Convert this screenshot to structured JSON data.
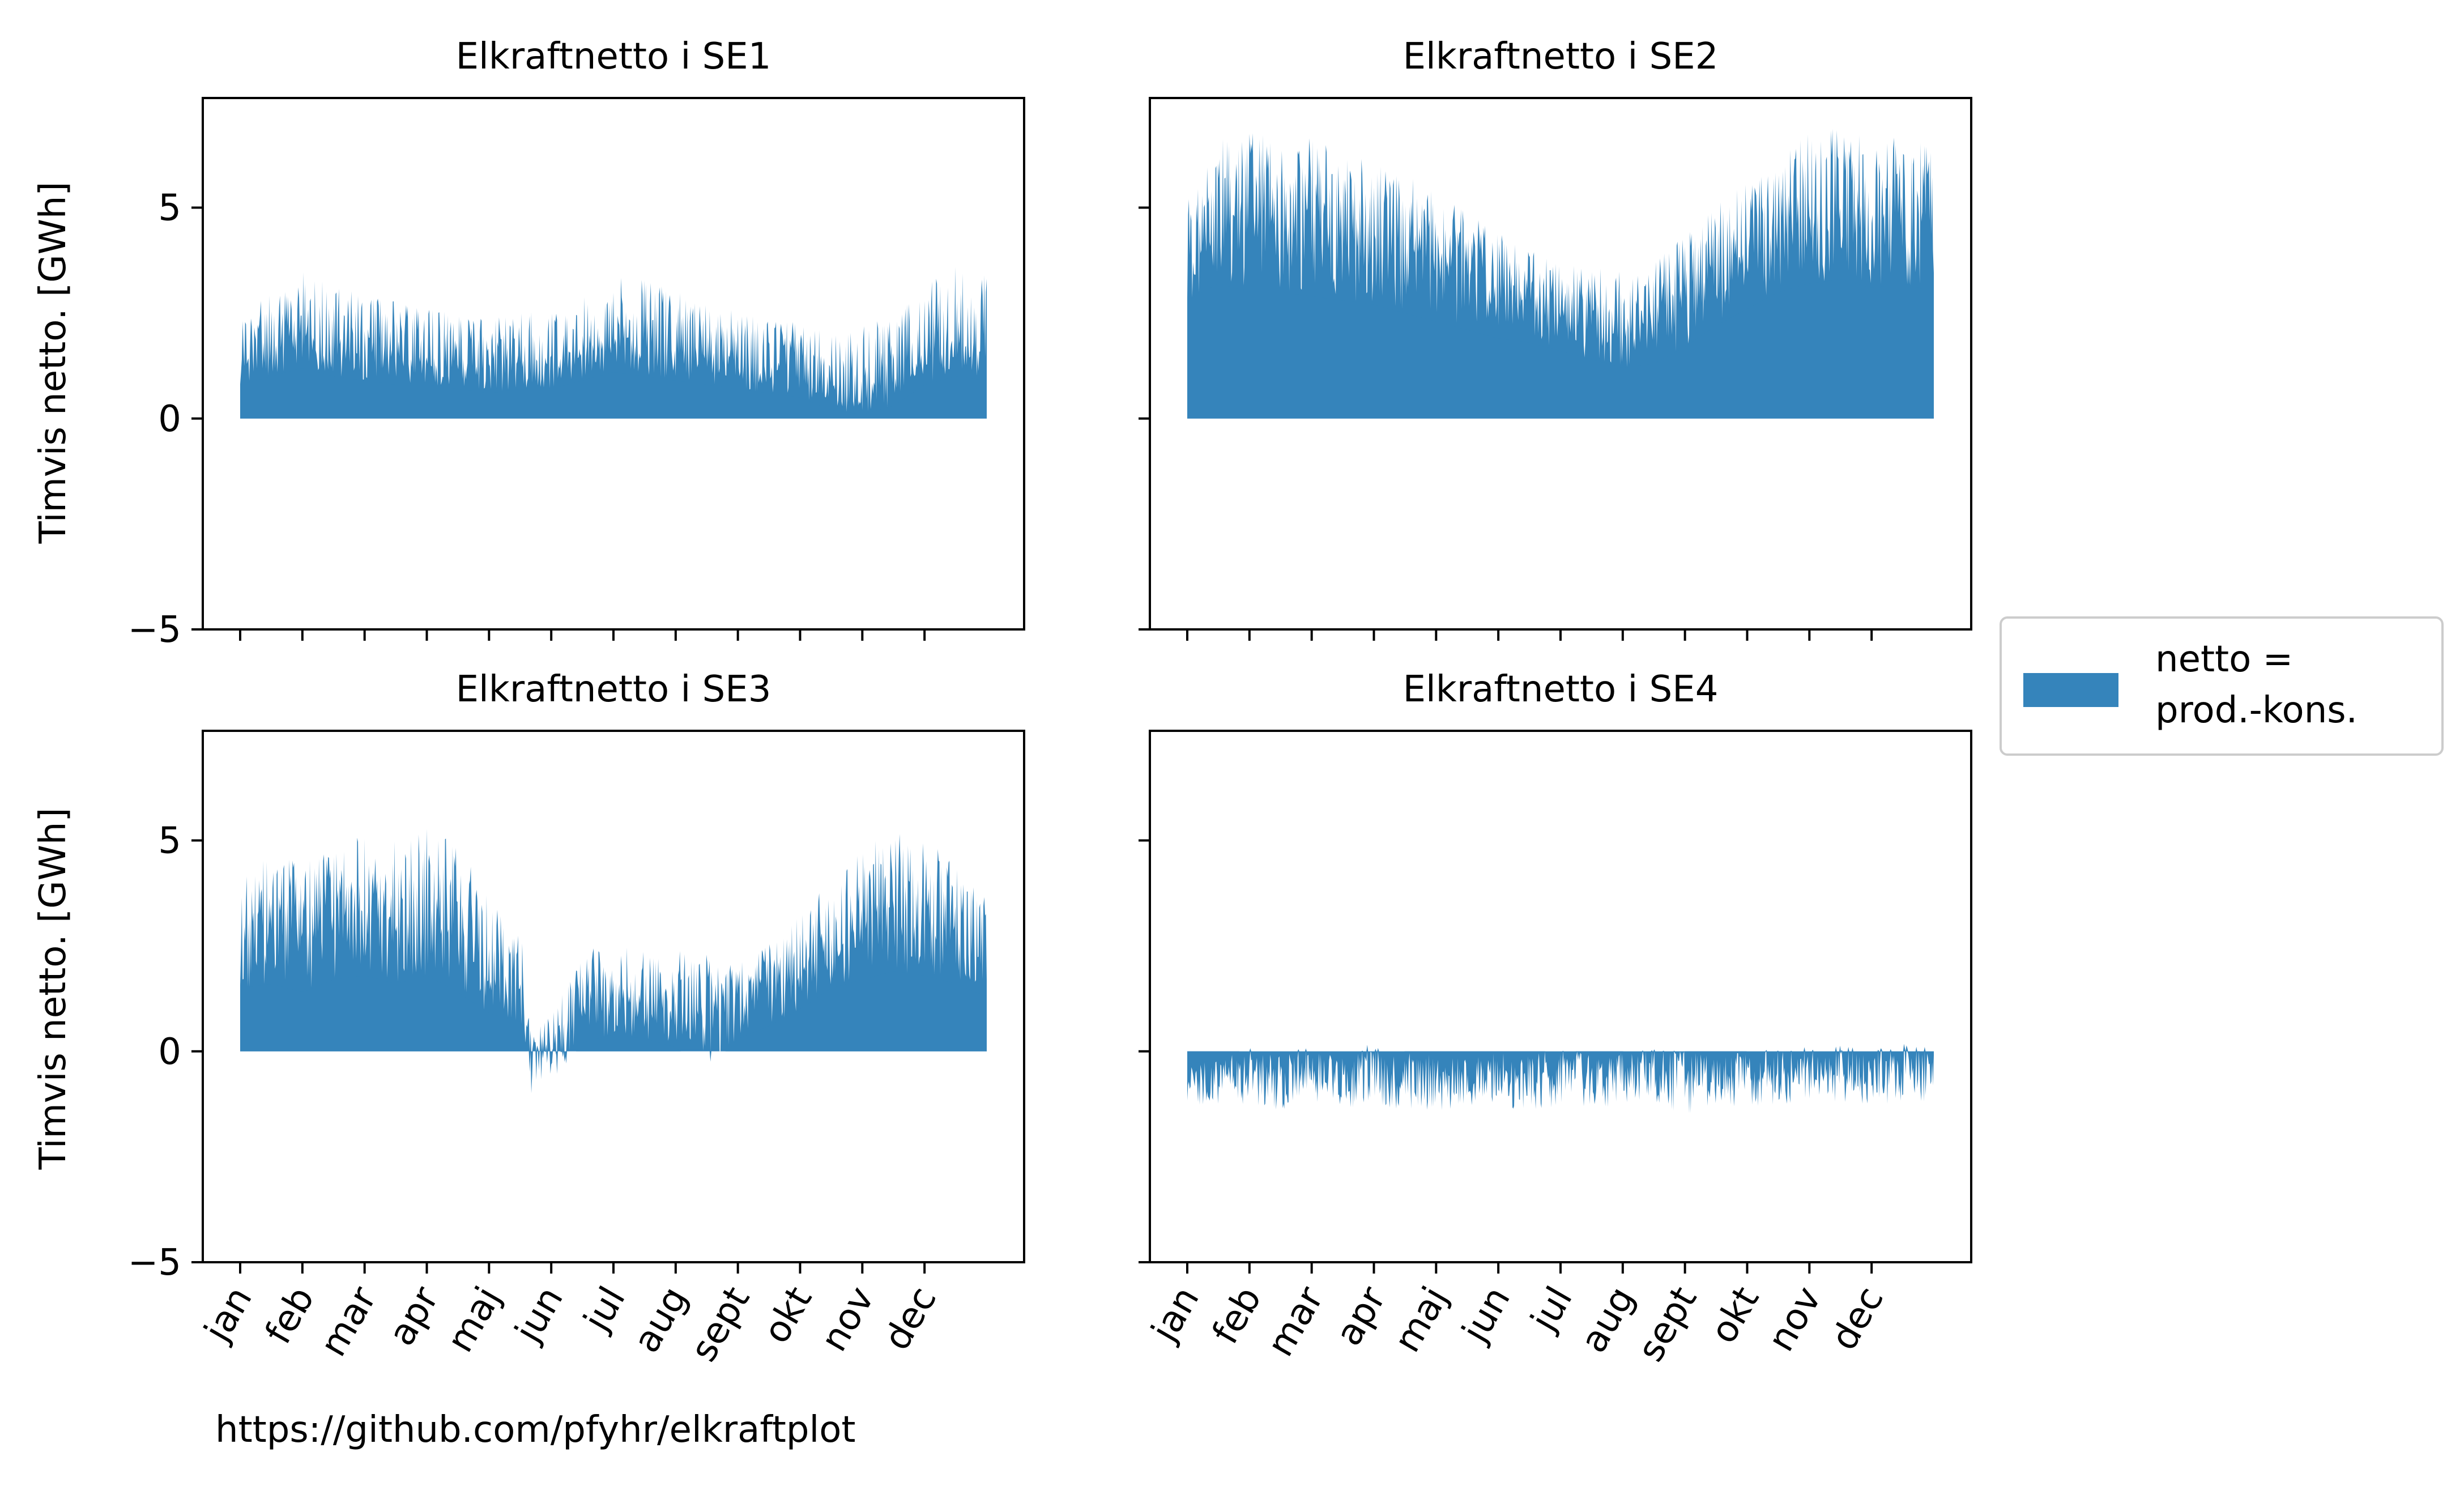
{
  "figure": {
    "credit": "https://github.com/pfyhr/elkraftplot",
    "ylabel": "Timvis netto. [GWh]",
    "fill_color": "#3584bb",
    "legend": {
      "label_line1": "netto =",
      "label_line2": "prod.-kons.",
      "placement": "center-right outside"
    }
  },
  "chart_data": [
    {
      "type": "area",
      "title": "Elkraftnetto i SE1",
      "ylabel": "Timvis netto. [GWh]",
      "ylim": [
        -5,
        7.6
      ],
      "yticks": [
        "−5",
        "0",
        "5"
      ],
      "ytick_values": [
        -5,
        0,
        5
      ],
      "xticks": [
        "jan",
        "feb",
        "mar",
        "apr",
        "maj",
        "jun",
        "jul",
        "aug",
        "sept",
        "okt",
        "nov",
        "dec"
      ],
      "xtick_labels_shown": false,
      "x_unit": "month",
      "x_range": [
        0,
        12
      ],
      "series": [
        {
          "name": "netto = prod.-kons.",
          "envelope_x": [
            0.0,
            0.5,
            1.0,
            1.5,
            2.0,
            2.5,
            3.0,
            3.5,
            4.0,
            4.5,
            5.0,
            5.5,
            6.0,
            6.5,
            7.0,
            7.5,
            8.0,
            8.5,
            9.0,
            9.5,
            10.0,
            10.5,
            11.0,
            11.5,
            12.0
          ],
          "upper": [
            2.4,
            3.0,
            3.5,
            3.2,
            2.9,
            2.8,
            2.6,
            2.5,
            2.4,
            2.5,
            2.6,
            3.0,
            3.4,
            3.3,
            3.0,
            2.8,
            2.6,
            2.4,
            2.3,
            2.0,
            2.2,
            2.5,
            3.2,
            3.6,
            3.5
          ],
          "base": [
            1.6,
            1.9,
            2.1,
            1.9,
            1.7,
            1.6,
            1.5,
            1.4,
            1.3,
            1.4,
            1.5,
            1.7,
            2.0,
            1.9,
            1.7,
            1.6,
            1.5,
            1.4,
            1.2,
            0.9,
            0.8,
            1.0,
            1.6,
            1.9,
            1.8
          ],
          "lower": [
            0.8,
            1.0,
            1.2,
            1.0,
            0.9,
            0.8,
            0.8,
            0.7,
            0.6,
            0.7,
            0.7,
            0.9,
            1.1,
            1.0,
            0.9,
            0.8,
            0.7,
            0.6,
            0.5,
            0.2,
            0.1,
            0.3,
            0.8,
            1.0,
            0.9
          ]
        }
      ]
    },
    {
      "type": "area",
      "title": "Elkraftnetto i SE2",
      "ylabel": "",
      "ylim": [
        -5,
        7.6
      ],
      "yticks": [
        "",
        "",
        ""
      ],
      "ytick_values": [
        -5,
        0,
        5
      ],
      "xticks": [
        "jan",
        "feb",
        "mar",
        "apr",
        "maj",
        "jun",
        "jul",
        "aug",
        "sept",
        "okt",
        "nov",
        "dec"
      ],
      "xtick_labels_shown": false,
      "x_unit": "month",
      "x_range": [
        0,
        12
      ],
      "series": [
        {
          "name": "netto = prod.-kons.",
          "envelope_x": [
            0.0,
            0.5,
            1.0,
            1.5,
            2.0,
            2.5,
            3.0,
            3.5,
            4.0,
            4.5,
            5.0,
            5.5,
            6.0,
            6.5,
            7.0,
            7.5,
            8.0,
            8.5,
            9.0,
            9.5,
            10.0,
            10.5,
            11.0,
            11.5,
            12.0
          ],
          "upper": [
            5.2,
            6.6,
            6.8,
            6.9,
            6.7,
            6.3,
            6.1,
            5.8,
            5.4,
            4.9,
            4.4,
            4.1,
            3.7,
            3.6,
            3.5,
            3.7,
            4.4,
            5.1,
            5.6,
            6.4,
            6.8,
            6.9,
            6.6,
            6.8,
            6.5
          ],
          "base": [
            4.2,
            5.0,
            5.1,
            5.0,
            4.9,
            4.7,
            4.5,
            4.3,
            4.0,
            3.6,
            3.3,
            3.0,
            2.7,
            2.6,
            2.5,
            2.7,
            3.2,
            3.8,
            4.2,
            4.8,
            5.1,
            5.2,
            5.0,
            5.1,
            4.9
          ],
          "lower": [
            2.8,
            3.2,
            3.0,
            3.0,
            2.9,
            2.8,
            2.7,
            2.5,
            2.3,
            2.1,
            1.9,
            1.8,
            1.6,
            1.4,
            1.2,
            1.3,
            1.7,
            2.2,
            2.6,
            3.0,
            3.2,
            3.3,
            3.1,
            3.2,
            3.0
          ]
        }
      ]
    },
    {
      "type": "area",
      "title": "Elkraftnetto i SE3",
      "ylabel": "Timvis netto. [GWh]",
      "ylim": [
        -5,
        7.6
      ],
      "yticks": [
        "−5",
        "0",
        "5"
      ],
      "ytick_values": [
        -5,
        0,
        5
      ],
      "xticks": [
        "jan",
        "feb",
        "mar",
        "apr",
        "maj",
        "jun",
        "jul",
        "aug",
        "sept",
        "okt",
        "nov",
        "dec"
      ],
      "xtick_labels_shown": true,
      "x_unit": "month",
      "x_range": [
        0,
        12
      ],
      "series": [
        {
          "name": "netto = prod.-kons.",
          "envelope_x": [
            0.0,
            0.5,
            1.0,
            1.5,
            2.0,
            2.5,
            3.0,
            3.5,
            4.0,
            4.5,
            4.7,
            5.0,
            5.5,
            6.0,
            6.5,
            7.0,
            7.5,
            8.0,
            8.5,
            9.0,
            9.5,
            10.0,
            10.5,
            11.0,
            11.5,
            12.0
          ],
          "upper": [
            4.2,
            4.7,
            4.6,
            4.9,
            5.2,
            5.0,
            5.3,
            5.0,
            3.6,
            3.0,
            0.4,
            0.9,
            2.4,
            2.7,
            2.5,
            2.4,
            2.3,
            2.1,
            2.6,
            3.3,
            4.1,
            4.9,
            5.2,
            5.0,
            4.6,
            3.8
          ],
          "base": [
            2.9,
            3.1,
            3.0,
            3.2,
            3.4,
            3.2,
            3.5,
            3.1,
            2.3,
            1.9,
            0.0,
            0.3,
            1.4,
            1.6,
            1.5,
            1.4,
            1.3,
            1.3,
            1.6,
            2.2,
            2.8,
            3.3,
            3.5,
            3.3,
            3.0,
            2.6
          ],
          "lower": [
            1.5,
            1.6,
            1.4,
            1.7,
            1.8,
            1.6,
            1.8,
            1.4,
            0.9,
            0.7,
            -1.2,
            -0.8,
            0.2,
            0.4,
            0.3,
            0.1,
            -0.6,
            0.3,
            0.6,
            1.0,
            1.5,
            1.7,
            1.9,
            1.8,
            1.6,
            1.3
          ]
        }
      ]
    },
    {
      "type": "area",
      "title": "Elkraftnetto i SE4",
      "ylabel": "",
      "ylim": [
        -5,
        7.6
      ],
      "yticks": [
        "",
        "",
        ""
      ],
      "ytick_values": [
        -5,
        0,
        5
      ],
      "xticks": [
        "jan",
        "feb",
        "mar",
        "apr",
        "maj",
        "jun",
        "jul",
        "aug",
        "sept",
        "okt",
        "nov",
        "dec"
      ],
      "xtick_labels_shown": true,
      "x_unit": "month",
      "x_range": [
        0,
        12
      ],
      "series": [
        {
          "name": "netto = prod.-kons.",
          "envelope_x": [
            0.0,
            0.5,
            1.0,
            1.5,
            2.0,
            2.5,
            3.0,
            3.5,
            4.0,
            4.5,
            5.0,
            5.5,
            6.0,
            6.5,
            7.0,
            7.5,
            8.0,
            8.5,
            9.0,
            9.5,
            10.0,
            10.5,
            11.0,
            11.5,
            12.0
          ],
          "upper": [
            -0.3,
            -0.2,
            0.1,
            0.0,
            0.1,
            0.0,
            0.2,
            0.0,
            -0.1,
            -0.2,
            0.0,
            -0.1,
            0.1,
            -0.1,
            0.0,
            0.1,
            0.0,
            -0.1,
            0.0,
            0.1,
            0.1,
            0.2,
            0.1,
            0.2,
            0.1
          ],
          "base": [
            -0.7,
            -0.8,
            -0.6,
            -0.7,
            -0.6,
            -0.6,
            -0.6,
            -0.7,
            -0.8,
            -0.8,
            -0.7,
            -0.8,
            -0.7,
            -0.7,
            -0.6,
            -0.6,
            -0.7,
            -0.7,
            -0.6,
            -0.6,
            -0.6,
            -0.5,
            -0.6,
            -0.5,
            -0.6
          ],
          "lower": [
            -1.2,
            -1.4,
            -1.3,
            -1.4,
            -1.2,
            -1.3,
            -1.4,
            -1.5,
            -1.5,
            -1.4,
            -1.3,
            -1.5,
            -1.4,
            -1.5,
            -1.2,
            -1.3,
            -1.5,
            -1.4,
            -1.3,
            -1.4,
            -1.2,
            -1.3,
            -1.3,
            -1.2,
            -1.3
          ]
        }
      ]
    }
  ]
}
